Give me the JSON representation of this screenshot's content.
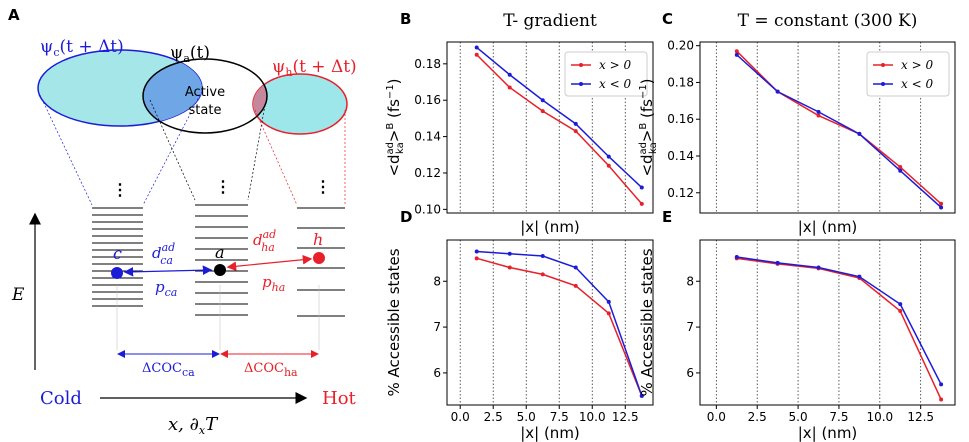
{
  "diagram": {
    "panel": "A",
    "psi_c": {
      "main": "ψ",
      "sub": "c",
      "rest": "(t + Δt)"
    },
    "psi_a": {
      "main": "ψ",
      "sub": "a",
      "rest": "(t)"
    },
    "psi_h": {
      "main": "ψ",
      "sub": "h",
      "rest": "(t + Δt)"
    },
    "active": [
      "Active",
      "state"
    ],
    "dots": [
      "⋮",
      "⋮",
      "⋮"
    ],
    "states": [
      "c",
      "a",
      "h"
    ],
    "d_ca": {
      "main": "d",
      "sup": "ad",
      "sub": "ca"
    },
    "p_ca": {
      "main": "p",
      "sub": "ca"
    },
    "d_ha": {
      "main": "d",
      "sup": "ad",
      "sub": "ha"
    },
    "p_ha": {
      "main": "p",
      "sub": "ha"
    },
    "energy": "E",
    "coc_ca": {
      "main": "ΔCOC",
      "sub": "ca"
    },
    "coc_ha": {
      "main": "ΔCOC",
      "sub": "ha"
    },
    "cold": "Cold",
    "hot": "Hot",
    "xaxis": {
      "main": "x, ∂",
      "sub": "x",
      "rest": "T"
    }
  },
  "chart_data": [
    {
      "type": "line",
      "panel": "B",
      "title": "T- gradient",
      "xlabel": "|x| (nm)",
      "ylabel": [
        {
          "t": "<d"
        },
        {
          "t": "ad",
          "pos": "sup"
        },
        {
          "t": "ka",
          "pos": "sub"
        },
        {
          "t": ">"
        },
        {
          "t": "B",
          "pos": "sup"
        },
        {
          "t": " (fs"
        },
        {
          "t": "−1",
          "pos": "sup"
        },
        {
          "t": ")"
        }
      ],
      "x": [
        1.25,
        3.75,
        6.25,
        8.75,
        11.25,
        13.75
      ],
      "xlim": [
        -1,
        14.6
      ],
      "vlines": [
        0,
        2.5,
        5,
        7.5,
        10,
        12.5
      ],
      "ylim": [
        0.098,
        0.192
      ],
      "yticks": [
        {
          "value": 0.1,
          "label": "0.10"
        },
        0.12,
        0.14,
        0.16,
        0.18
      ],
      "legend": "upper right",
      "series": [
        {
          "name": "x > 0",
          "color": "#e8202a",
          "values": [
            0.185,
            0.167,
            0.154,
            0.143,
            0.124,
            0.103
          ]
        },
        {
          "name": "x < 0",
          "color": "#1c1cd8",
          "values": [
            0.189,
            0.174,
            0.16,
            0.147,
            0.129,
            0.112
          ]
        }
      ]
    },
    {
      "type": "line",
      "panel": "C",
      "title": "T = constant (300 K)",
      "xlabel": "|x| (nm)",
      "ylabel": [
        {
          "t": "<d"
        },
        {
          "t": "ad",
          "pos": "sup"
        },
        {
          "t": "ka",
          "pos": "sub"
        },
        {
          "t": ">"
        },
        {
          "t": "B",
          "pos": "sup"
        },
        {
          "t": " (fs"
        },
        {
          "t": "−1",
          "pos": "sup"
        },
        {
          "t": ")"
        }
      ],
      "x": [
        1.25,
        3.75,
        6.25,
        8.75,
        11.25,
        13.75
      ],
      "xlim": [
        -1,
        14.6
      ],
      "vlines": [
        0,
        2.5,
        5,
        7.5,
        10,
        12.5
      ],
      "ylim": [
        0.109,
        0.202
      ],
      "yticks": [
        0.12,
        0.14,
        0.16,
        0.18,
        {
          "value": 0.2,
          "label": "0.20"
        }
      ],
      "legend": "upper right",
      "series": [
        {
          "name": "x > 0",
          "color": "#e8202a",
          "values": [
            0.197,
            0.175,
            0.162,
            0.152,
            0.134,
            0.114
          ]
        },
        {
          "name": "x < 0",
          "color": "#1c1cd8",
          "values": [
            0.195,
            0.175,
            0.164,
            0.152,
            0.132,
            0.112
          ]
        }
      ]
    },
    {
      "type": "line",
      "panel": "D",
      "xlabel": "|x| (nm)",
      "ylabel": [
        {
          "t": "% Accessible states"
        }
      ],
      "x": [
        1.25,
        3.75,
        6.25,
        8.75,
        11.25,
        13.75
      ],
      "xlim": [
        -1,
        14.6
      ],
      "xticks": [
        {
          "value": 0,
          "label": "0.0"
        },
        2.5,
        {
          "value": 5,
          "label": "5.0"
        },
        7.5,
        {
          "value": 10,
          "label": "10.0"
        },
        12.5
      ],
      "ylim": [
        5.3,
        8.9
      ],
      "yticks": [
        6,
        7,
        8
      ],
      "series": [
        {
          "name": "x > 0",
          "color": "#e8202a",
          "values": [
            8.5,
            8.3,
            8.15,
            7.9,
            7.3,
            5.5
          ]
        },
        {
          "name": "x < 0",
          "color": "#1c1cd8",
          "values": [
            8.65,
            8.6,
            8.55,
            8.3,
            7.55,
            5.5
          ]
        }
      ]
    },
    {
      "type": "line",
      "panel": "E",
      "xlabel": "|x| (nm)",
      "ylabel": [
        {
          "t": "% Accessible states"
        }
      ],
      "x": [
        1.25,
        3.75,
        6.25,
        8.75,
        11.25,
        13.75
      ],
      "xlim": [
        -1,
        14.6
      ],
      "xticks": [
        {
          "value": 0,
          "label": "0.0"
        },
        2.5,
        {
          "value": 5,
          "label": "5.0"
        },
        7.5,
        {
          "value": 10,
          "label": "10.0"
        },
        12.5
      ],
      "ylim": [
        5.3,
        8.9
      ],
      "yticks": [
        6,
        7,
        8
      ],
      "series": [
        {
          "name": "x > 0",
          "color": "#e8202a",
          "values": [
            8.5,
            8.38,
            8.28,
            8.07,
            7.35,
            5.42
          ]
        },
        {
          "name": "x < 0",
          "color": "#1c1cd8",
          "values": [
            8.53,
            8.4,
            8.3,
            8.1,
            7.5,
            5.75
          ]
        }
      ]
    }
  ]
}
